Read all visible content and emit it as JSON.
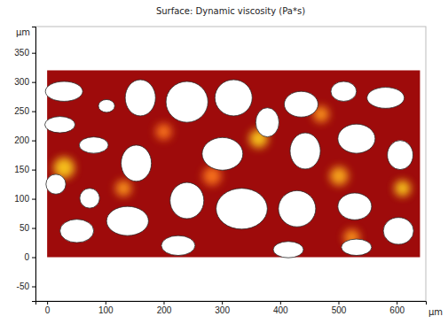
{
  "chart_data": {
    "type": "surface",
    "title": "Surface: Dynamic viscosity (Pa*s)",
    "x_label": "μm",
    "y_label": "μm",
    "xlim": [
      -20,
      650
    ],
    "ylim": [
      -75,
      395
    ],
    "xticks": [
      0,
      100,
      200,
      300,
      400,
      500,
      600
    ],
    "yticks": [
      -50,
      0,
      50,
      100,
      150,
      200,
      250,
      300,
      350
    ],
    "grid": false,
    "color": "#9e0b0b",
    "domain": {
      "x": [
        0,
        640
      ],
      "y": [
        0,
        320
      ]
    },
    "hotspots": [
      {
        "x": 29,
        "y": 153,
        "r": 18,
        "color": "#ffd21a"
      },
      {
        "x": 131,
        "y": 118,
        "r": 14,
        "color": "#ff9a1a"
      },
      {
        "x": 283,
        "y": 139,
        "r": 16,
        "color": "#ff7a1a"
      },
      {
        "x": 363,
        "y": 203,
        "r": 16,
        "color": "#ffd21a"
      },
      {
        "x": 501,
        "y": 139,
        "r": 16,
        "color": "#ffb21a"
      },
      {
        "x": 610,
        "y": 118,
        "r": 14,
        "color": "#ffd21a"
      },
      {
        "x": 523,
        "y": 34,
        "r": 14,
        "color": "#ff9a1a"
      },
      {
        "x": 200,
        "y": 215,
        "r": 14,
        "color": "#ff7a1a"
      },
      {
        "x": 470,
        "y": 245,
        "r": 14,
        "color": "#ff9a1a"
      }
    ],
    "grains": [
      {
        "cx": 29,
        "cy": 284,
        "rx": 32,
        "ry": 17
      },
      {
        "cx": 22,
        "cy": 227,
        "rx": 26,
        "ry": 14
      },
      {
        "cx": 102,
        "cy": 259,
        "rx": 14,
        "ry": 11
      },
      {
        "cx": 160,
        "cy": 273,
        "rx": 26,
        "ry": 31
      },
      {
        "cx": 80,
        "cy": 192,
        "rx": 25,
        "ry": 14
      },
      {
        "cx": 153,
        "cy": 161,
        "rx": 26,
        "ry": 31
      },
      {
        "cx": 15,
        "cy": 125,
        "rx": 17,
        "ry": 17
      },
      {
        "cx": 73,
        "cy": 101,
        "rx": 17,
        "ry": 17
      },
      {
        "cx": 51,
        "cy": 45,
        "rx": 29,
        "ry": 20
      },
      {
        "cx": 138,
        "cy": 62,
        "rx": 36,
        "ry": 25
      },
      {
        "cx": 240,
        "cy": 266,
        "rx": 36,
        "ry": 35
      },
      {
        "cx": 320,
        "cy": 273,
        "rx": 32,
        "ry": 31
      },
      {
        "cx": 378,
        "cy": 231,
        "rx": 20,
        "ry": 25
      },
      {
        "cx": 301,
        "cy": 177,
        "rx": 35,
        "ry": 28
      },
      {
        "cx": 240,
        "cy": 97,
        "rx": 29,
        "ry": 31
      },
      {
        "cx": 334,
        "cy": 83,
        "rx": 44,
        "ry": 35
      },
      {
        "cx": 225,
        "cy": 20,
        "rx": 29,
        "ry": 17
      },
      {
        "cx": 436,
        "cy": 262,
        "rx": 29,
        "ry": 22
      },
      {
        "cx": 509,
        "cy": 284,
        "rx": 22,
        "ry": 17
      },
      {
        "cx": 581,
        "cy": 273,
        "rx": 32,
        "ry": 18
      },
      {
        "cx": 443,
        "cy": 182,
        "rx": 26,
        "ry": 31
      },
      {
        "cx": 531,
        "cy": 203,
        "rx": 32,
        "ry": 25
      },
      {
        "cx": 606,
        "cy": 175,
        "rx": 22,
        "ry": 25
      },
      {
        "cx": 429,
        "cy": 83,
        "rx": 32,
        "ry": 31
      },
      {
        "cx": 528,
        "cy": 87,
        "rx": 29,
        "ry": 23
      },
      {
        "cx": 603,
        "cy": 45,
        "rx": 26,
        "ry": 23
      },
      {
        "cx": 531,
        "cy": 17,
        "rx": 26,
        "ry": 14
      },
      {
        "cx": 414,
        "cy": 13,
        "rx": 26,
        "ry": 14
      }
    ]
  }
}
